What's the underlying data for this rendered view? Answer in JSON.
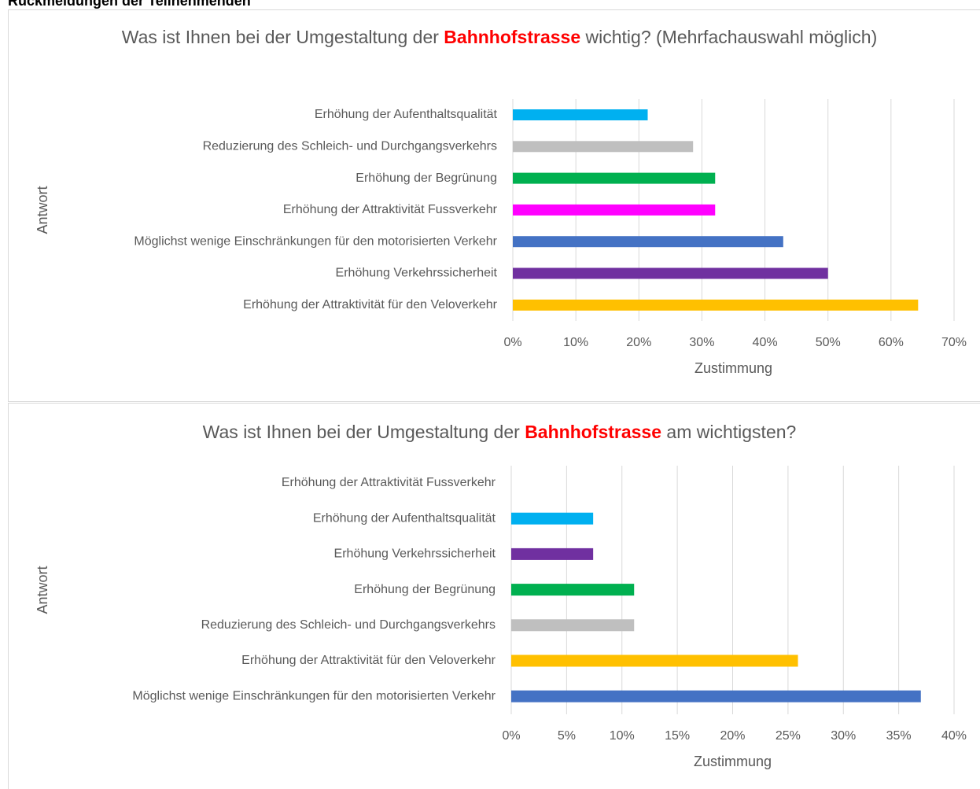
{
  "header": "Rückmeldungen der Teilnehmenden",
  "chart_data": [
    {
      "type": "bar",
      "orientation": "horizontal",
      "title": [
        "Was ist Ihnen bei der Umgestaltung der ",
        "Bahnhofstrasse",
        " wichtig? (Mehrfachauswahl möglich)"
      ],
      "title_highlight_color": "#ff0000",
      "y_label": "Antwort",
      "x_label": "Zustimmung",
      "categories": [
        "Erhöhung der Aufenthaltsqualität",
        "Reduzierung des Schleich- und Durchgangsverkehrs",
        "Erhöhung der Begrünung",
        "Erhöhung der Attraktivität Fussverkehr",
        "Möglichst wenige Einschränkungen für den motorisierten Verkehr",
        "Erhöhung Verkehrssicherheit",
        "Erhöhung der Attraktivität für den Veloverkehr"
      ],
      "values": [
        21.4,
        28.6,
        32.1,
        32.1,
        42.9,
        50,
        64.3
      ],
      "colors": [
        "#00b0f0",
        "#bfbfbf",
        "#00b050",
        "#ff00ff",
        "#4472c4",
        "#7030a0",
        "#ffc000"
      ],
      "xlim": [
        0,
        70
      ],
      "xticks": [
        {
          "value": 0,
          "label": "0%"
        },
        {
          "value": 10,
          "label": "10%"
        },
        {
          "value": 20,
          "label": "20%"
        },
        {
          "value": 30,
          "label": "30%"
        },
        {
          "value": 40,
          "label": "40%"
        },
        {
          "value": 50,
          "label": "50%"
        },
        {
          "value": 60,
          "label": "60%"
        },
        {
          "value": 70,
          "label": "70%"
        }
      ],
      "grid": true
    },
    {
      "type": "bar",
      "orientation": "horizontal",
      "title": [
        "Was ist Ihnen bei der Umgestaltung der ",
        "Bahnhofstrasse",
        " am wichtigsten?"
      ],
      "title_highlight_color": "#ff0000",
      "y_label": "Antwort",
      "x_label": "Zustimmung",
      "categories": [
        "Erhöhung der Attraktivität Fussverkehr",
        "Erhöhung der Aufenthaltsqualität",
        "Erhöhung Verkehrssicherheit",
        "Erhöhung der Begrünung",
        "Reduzierung des Schleich- und Durchgangsverkehrs",
        "Erhöhung der Attraktivität für den Veloverkehr",
        "Möglichst wenige Einschränkungen für den motorisierten Verkehr"
      ],
      "values": [
        0,
        7.4,
        7.4,
        11.1,
        11.1,
        25.9,
        37
      ],
      "colors": [
        null,
        "#00b0f0",
        "#7030a0",
        "#00b050",
        "#bfbfbf",
        "#ffc000",
        "#4472c4"
      ],
      "xlim": [
        0,
        40
      ],
      "xticks": [
        {
          "value": 0,
          "label": "0%"
        },
        {
          "value": 5,
          "label": "5%"
        },
        {
          "value": 10,
          "label": "10%"
        },
        {
          "value": 15,
          "label": "15%"
        },
        {
          "value": 20,
          "label": "20%"
        },
        {
          "value": 25,
          "label": "25%"
        },
        {
          "value": 30,
          "label": "30%"
        },
        {
          "value": 35,
          "label": "35%"
        },
        {
          "value": 40,
          "label": "40%"
        }
      ],
      "grid": true
    }
  ]
}
